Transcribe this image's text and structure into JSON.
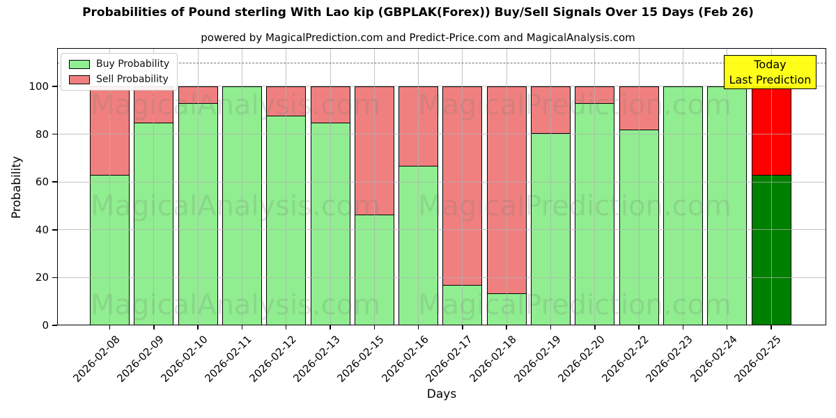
{
  "title": "Probabilities of Pound sterling With Lao kip (GBPLAK(Forex)) Buy/Sell Signals Over 15 Days (Feb 26)",
  "subtitle": "powered by MagicalPrediction.com and Predict-Price.com and MagicalAnalysis.com",
  "legend": {
    "buy_label": "Buy Probability",
    "sell_label": "Sell Probability"
  },
  "annotation": {
    "line1": "Today",
    "line2": "Last Prediction"
  },
  "axes": {
    "xlabel": "Days",
    "ylabel": "Probability",
    "yticks": [
      0,
      20,
      40,
      60,
      80,
      100
    ]
  },
  "watermarks": [
    "MagicalAnalysis.com",
    "MagicalPrediction.com"
  ],
  "colors": {
    "buy": "#90ee90",
    "sell": "#f08080",
    "today_buy": "#008000",
    "today_sell": "#ff0000",
    "today_box": "#ffff00",
    "edge": "#000000"
  },
  "chart_data": {
    "type": "bar",
    "stacked": true,
    "title": "Probabilities of Pound sterling With Lao kip (GBPLAK(Forex)) Buy/Sell Signals Over 15 Days (Feb 26)",
    "xlabel": "Days",
    "ylabel": "Probability",
    "ylim": [
      0,
      116
    ],
    "dashed_line_y": 110,
    "grid": true,
    "legend_position": "upper-left",
    "categories": [
      "2026-02-08",
      "2026-02-09",
      "2026-02-10",
      "2026-02-11",
      "2026-02-12",
      "2026-02-13",
      "2026-02-15",
      "2026-02-16",
      "2026-02-17",
      "2026-02-18",
      "2026-02-19",
      "2026-02-20",
      "2026-02-22",
      "2026-02-23",
      "2026-02-24",
      "2026-02-25"
    ],
    "series": [
      {
        "name": "Buy Probability",
        "color": "#90ee90",
        "values": [
          63,
          85,
          93,
          100,
          88,
          85,
          46.5,
          67,
          17,
          13.5,
          80.5,
          93,
          82,
          100,
          100,
          63
        ]
      },
      {
        "name": "Sell Probability",
        "color": "#f08080",
        "values": [
          37,
          15,
          7,
          0,
          12,
          15,
          53.5,
          33,
          83,
          86.5,
          19.5,
          7,
          18,
          0,
          0,
          37
        ]
      }
    ],
    "today_bar": {
      "category": "2026-02-25",
      "buy_color": "#008000",
      "sell_color": "#ff0000"
    }
  }
}
